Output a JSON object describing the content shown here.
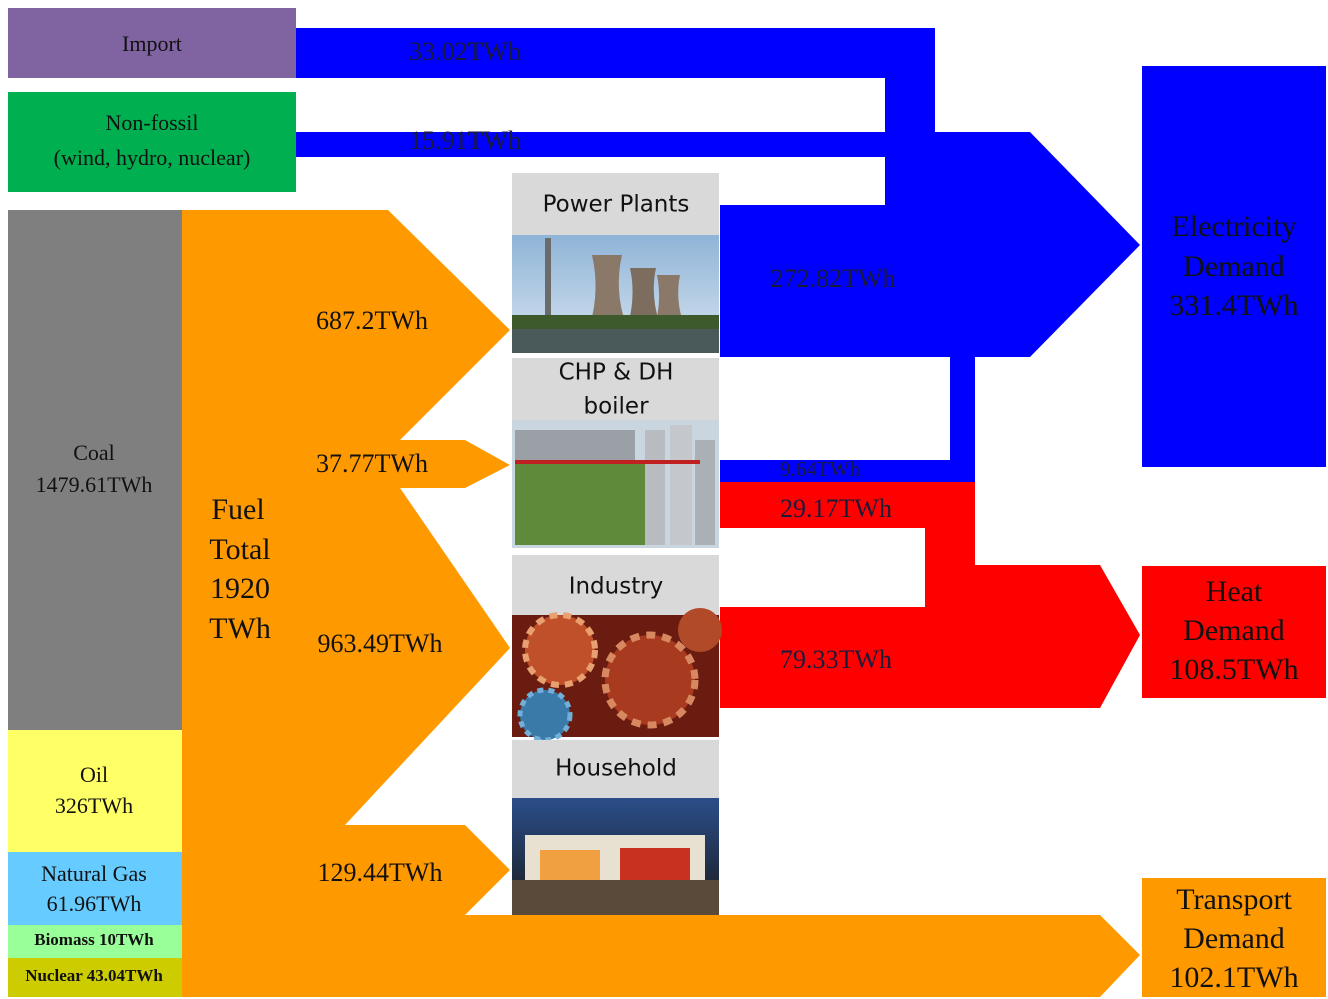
{
  "sources": {
    "import": "Import",
    "non_fossil": [
      "Non-fossil",
      "(wind, hydro, nuclear)"
    ]
  },
  "fuels": {
    "coal": [
      "Coal",
      "1479.61TWh"
    ],
    "oil": [
      "Oil",
      "326TWh"
    ],
    "natural_gas": [
      "Natural Gas",
      "61.96TWh"
    ],
    "biomass": "Biomass 10TWh",
    "nuclear": "Nuclear 43.04TWh"
  },
  "fuel_total": [
    "Fuel",
    "Total",
    "1920",
    "TWh"
  ],
  "fuel_flows": [
    "687.2TWh",
    "37.77TWh",
    "963.49TWh",
    "129.44TWh"
  ],
  "processes": [
    [
      "Power Plants"
    ],
    [
      "CHP & DH",
      "boiler"
    ],
    [
      "Industry"
    ],
    [
      "Household"
    ]
  ],
  "flows": {
    "import": "33.02TWh",
    "non_fossil": "15.91TWh",
    "power_plants": "272.82TWh",
    "chp_electricity": "9.64TWh",
    "chp_heat": "29.17TWh",
    "industry_heat": "79.33TWh"
  },
  "demands": {
    "electricity": [
      "Electricity",
      "Demand",
      "331.4TWh"
    ],
    "heat": [
      "Heat",
      "Demand",
      "108.5TWh"
    ],
    "transport": [
      "Transport",
      "Demand",
      "102.1TWh"
    ]
  }
}
